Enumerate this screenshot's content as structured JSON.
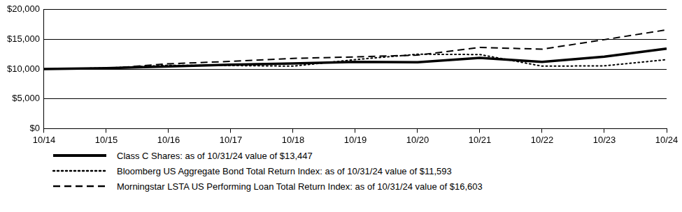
{
  "chart_data": {
    "type": "line",
    "categories": [
      "10/14",
      "10/15",
      "10/16",
      "10/17",
      "10/18",
      "10/19",
      "10/20",
      "10/21",
      "10/22",
      "10/23",
      "10/24"
    ],
    "series": [
      {
        "name": "Class C Shares: as of 10/31/24 value of $13,447",
        "color": "#000000",
        "line_style": "solid",
        "values": [
          10000,
          10150,
          10450,
          10750,
          10950,
          11200,
          11150,
          11900,
          11200,
          12100,
          13447
        ]
      },
      {
        "name": "Bloomberg US Aggregate Bond Total Return Index: as of 10/31/24 value of $11,593",
        "color": "#000000",
        "line_style": "dotted",
        "values": [
          10000,
          10194,
          10640,
          10600,
          10500,
          11600,
          12500,
          12450,
          10500,
          10550,
          11593
        ]
      },
      {
        "name": "Morningstar LSTA US Performing Loan Total Return Index: as of 10/31/24 value of $16,603",
        "color": "#000000",
        "line_style": "dashed",
        "values": [
          10000,
          10100,
          10900,
          11300,
          11800,
          12050,
          12350,
          13650,
          13350,
          14950,
          16603
        ]
      }
    ],
    "ylim": [
      0,
      20000
    ],
    "yticks": [
      {
        "value": 0,
        "label": "$0"
      },
      {
        "value": 5000,
        "label": "$5,000"
      },
      {
        "value": 10000,
        "label": "$10,000"
      },
      {
        "value": 15000,
        "label": "$15,000"
      },
      {
        "value": 20000,
        "label": "$20,000"
      }
    ],
    "grid": true,
    "legend": "bottom"
  }
}
